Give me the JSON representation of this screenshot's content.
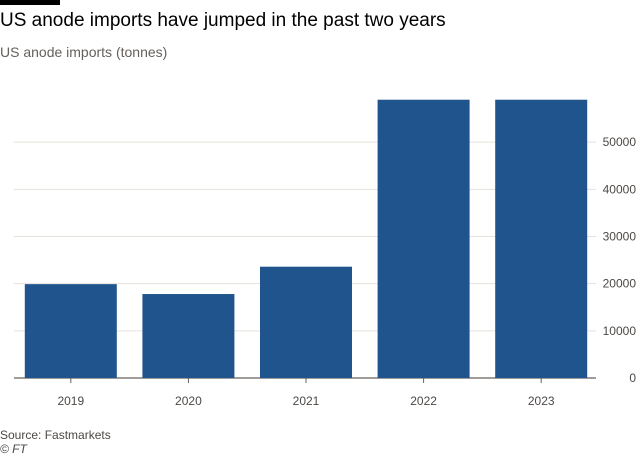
{
  "header": {
    "title": "US anode imports have jumped in the past two years",
    "subtitle": "US anode imports (tonnes)"
  },
  "footer": {
    "source": "Source: Fastmarkets",
    "copyright": "© FT"
  },
  "colors": {
    "bar": "#1f558c",
    "grid": "#e6e1db",
    "axis": "#66605c"
  },
  "chart_data": {
    "type": "bar",
    "title": "US anode imports have jumped in the past two years",
    "subtitle": "US anode imports (tonnes)",
    "xlabel": "",
    "ylabel": "US anode imports (tonnes)",
    "categories": [
      "2019",
      "2020",
      "2021",
      "2022",
      "2023"
    ],
    "values": [
      19900,
      17800,
      23600,
      59000,
      59000
    ],
    "ylim": [
      0,
      60000
    ],
    "yticks": [
      0,
      10000,
      20000,
      30000,
      40000,
      50000
    ],
    "ytick_labels": [
      "0",
      "10000",
      "20000",
      "30000",
      "40000",
      "50000"
    ],
    "y_axis_side": "right",
    "grid": true,
    "legend": "none"
  }
}
